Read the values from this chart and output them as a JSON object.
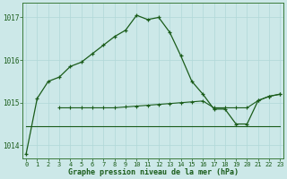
{
  "title": "Graphe pression niveau de la mer (hPa)",
  "background_color": "#cce8e8",
  "line_color": "#1a5c1a",
  "grid_color": "#b0d8d8",
  "ylim": [
    1013.7,
    1017.35
  ],
  "yticks": [
    1014,
    1015,
    1016,
    1017
  ],
  "xlim": [
    -0.3,
    23.3
  ],
  "main_series": [
    [
      0,
      1013.8
    ],
    [
      1,
      1015.1
    ],
    [
      2,
      1015.5
    ],
    [
      3,
      1015.6
    ],
    [
      4,
      1015.85
    ],
    [
      5,
      1015.95
    ],
    [
      6,
      1016.15
    ],
    [
      7,
      1016.35
    ],
    [
      8,
      1016.55
    ],
    [
      9,
      1016.7
    ],
    [
      10,
      1017.05
    ],
    [
      11,
      1016.95
    ],
    [
      12,
      1017.0
    ],
    [
      13,
      1016.65
    ],
    [
      14,
      1016.1
    ],
    [
      15,
      1015.5
    ],
    [
      16,
      1015.2
    ],
    [
      17,
      1014.85
    ],
    [
      18,
      1014.85
    ],
    [
      19,
      1014.5
    ],
    [
      20,
      1014.5
    ],
    [
      21,
      1015.05
    ],
    [
      22,
      1015.15
    ],
    [
      23,
      1015.2
    ]
  ],
  "mid_series": [
    [
      3,
      1014.88
    ],
    [
      4,
      1014.88
    ],
    [
      5,
      1014.88
    ],
    [
      6,
      1014.88
    ],
    [
      7,
      1014.88
    ],
    [
      8,
      1014.88
    ],
    [
      9,
      1014.9
    ],
    [
      10,
      1014.92
    ],
    [
      11,
      1014.94
    ],
    [
      12,
      1014.96
    ],
    [
      13,
      1014.98
    ],
    [
      14,
      1015.0
    ],
    [
      15,
      1015.02
    ],
    [
      16,
      1015.04
    ],
    [
      17,
      1014.88
    ],
    [
      18,
      1014.88
    ],
    [
      19,
      1014.88
    ],
    [
      20,
      1014.88
    ],
    [
      21,
      1015.05
    ],
    [
      22,
      1015.15
    ],
    [
      23,
      1015.2
    ]
  ],
  "flat_series": [
    [
      0,
      1014.45
    ],
    [
      1,
      1014.45
    ],
    [
      2,
      1014.45
    ],
    [
      3,
      1014.45
    ],
    [
      4,
      1014.45
    ],
    [
      5,
      1014.45
    ],
    [
      6,
      1014.45
    ],
    [
      7,
      1014.45
    ],
    [
      8,
      1014.45
    ],
    [
      9,
      1014.45
    ],
    [
      10,
      1014.45
    ],
    [
      11,
      1014.45
    ],
    [
      12,
      1014.45
    ],
    [
      13,
      1014.45
    ],
    [
      14,
      1014.45
    ],
    [
      15,
      1014.45
    ],
    [
      16,
      1014.45
    ],
    [
      17,
      1014.45
    ],
    [
      18,
      1014.45
    ],
    [
      19,
      1014.45
    ],
    [
      20,
      1014.45
    ],
    [
      21,
      1014.45
    ],
    [
      22,
      1014.45
    ],
    [
      23,
      1014.45
    ]
  ]
}
